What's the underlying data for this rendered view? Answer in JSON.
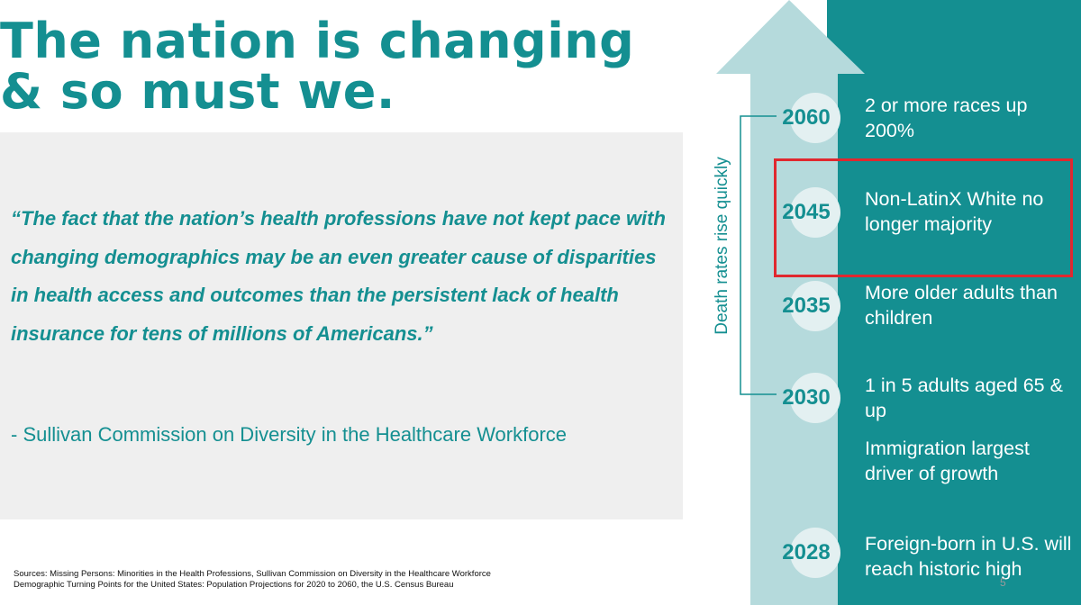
{
  "title": "The nation is changing & so must we.",
  "quote": "“The fact that the nation’s health professions have not kept pace with changing demographics may be an even greater cause of disparities in health access and outcomes than the persistent lack of health insurance for tens of millions of Americans.”",
  "attribution": "- Sullivan Commission on Diversity in the Healthcare Workforce",
  "sources": [
    "Sources: Missing Persons: Minorities in the Health Professions, Sullivan Commission on Diversity in the Healthcare Workforce",
    "Demographic Turning Points for the United States: Population Projections for 2020 to 2060, the U.S. Census Bureau"
  ],
  "page_number": "5",
  "timeline": {
    "bracket_label": "Death rates rise quickly",
    "milestones": [
      {
        "year": "2060",
        "event": "2 or more races up 200%"
      },
      {
        "year": "2045",
        "event": "Non-LatinX White no longer majority",
        "highlighted": true
      },
      {
        "year": "2035",
        "event": "More older adults than children"
      },
      {
        "year": "2030",
        "event": "1 in 5 adults aged 65 & up",
        "extra": "Immigration largest driver of growth"
      },
      {
        "year": "2028",
        "event": "Foreign-born in U.S. will reach historic high"
      }
    ]
  },
  "colors": {
    "brand_teal": "#148f91",
    "arrow_fill": "#b5dadc",
    "circle_fill": "#e3f0f1",
    "highlight_border": "#e0282f"
  }
}
